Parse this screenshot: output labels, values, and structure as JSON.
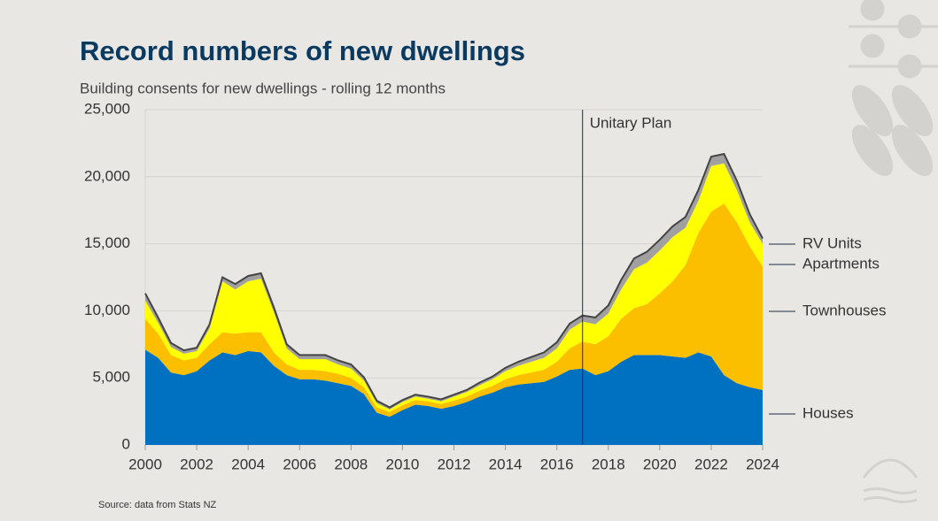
{
  "chart_data": {
    "type": "stacked-area",
    "title": "Record numbers of new dwellings",
    "subtitle": "Building consents for new dwellings - rolling 12 months",
    "source": "Source: data from Stats NZ",
    "annotation": {
      "text": "Unitary Plan",
      "x": 2017
    },
    "x": [
      2000,
      2000.5,
      2001,
      2001.5,
      2002,
      2002.5,
      2003,
      2003.5,
      2004,
      2004.5,
      2005,
      2005.5,
      2006,
      2006.5,
      2007,
      2007.5,
      2008,
      2008.5,
      2009,
      2009.5,
      2010,
      2010.5,
      2011,
      2011.5,
      2012,
      2012.5,
      2013,
      2013.5,
      2014,
      2014.5,
      2015,
      2015.5,
      2016,
      2016.5,
      2017,
      2017.5,
      2018,
      2018.5,
      2019,
      2019.5,
      2020,
      2020.5,
      2021,
      2021.5,
      2022,
      2022.5,
      2023,
      2023.5,
      2024
    ],
    "series": [
      {
        "name": "Houses",
        "color": "#0070c0",
        "values": [
          7100,
          6500,
          5400,
          5200,
          5500,
          6300,
          6900,
          6700,
          7000,
          6900,
          5900,
          5200,
          4900,
          4900,
          4800,
          4600,
          4400,
          3800,
          2400,
          2100,
          2600,
          3000,
          2900,
          2700,
          2900,
          3200,
          3600,
          3900,
          4300,
          4500,
          4600,
          4700,
          5100,
          5600,
          5700,
          5200,
          5500,
          6200,
          6700,
          6700,
          6700,
          6600,
          6500,
          6900,
          6600,
          5200,
          4600,
          4300,
          4100
        ]
      },
      {
        "name": "Townhouses",
        "color": "#fbbf00",
        "values": [
          2300,
          1800,
          1300,
          1100,
          1000,
          1200,
          1500,
          1600,
          1400,
          1500,
          1000,
          800,
          700,
          700,
          700,
          700,
          600,
          500,
          400,
          350,
          350,
          350,
          350,
          350,
          400,
          400,
          450,
          500,
          600,
          700,
          800,
          900,
          1100,
          1600,
          2000,
          2300,
          2600,
          3200,
          3500,
          3800,
          4600,
          5600,
          6900,
          8900,
          10800,
          12800,
          12000,
          10500,
          9200
        ]
      },
      {
        "name": "Apartments",
        "color": "#ffff00",
        "values": [
          1350,
          800,
          600,
          500,
          500,
          1200,
          3800,
          3300,
          3800,
          4000,
          3000,
          1200,
          800,
          800,
          900,
          700,
          700,
          500,
          300,
          200,
          250,
          250,
          200,
          200,
          300,
          350,
          400,
          500,
          600,
          700,
          800,
          900,
          1000,
          1400,
          1500,
          1500,
          1700,
          2200,
          2900,
          3100,
          3200,
          3300,
          2800,
          2400,
          3400,
          3000,
          2400,
          1800,
          1700
        ]
      },
      {
        "name": "RV Units",
        "color": "#a0a0a0",
        "values": [
          550,
          400,
          300,
          250,
          250,
          300,
          300,
          400,
          400,
          400,
          350,
          300,
          300,
          300,
          300,
          300,
          300,
          250,
          200,
          150,
          150,
          150,
          150,
          150,
          150,
          150,
          200,
          200,
          250,
          300,
          350,
          400,
          450,
          450,
          450,
          500,
          600,
          700,
          800,
          800,
          800,
          800,
          800,
          800,
          700,
          700,
          700,
          600,
          400
        ]
      }
    ],
    "xlim": [
      2000,
      2024
    ],
    "xticks": [
      2000,
      2002,
      2004,
      2006,
      2008,
      2010,
      2012,
      2014,
      2016,
      2018,
      2020,
      2022,
      2024
    ],
    "ylim": [
      0,
      25000
    ],
    "yticks": [
      0,
      {
        "value": 5000,
        "label": "5,000"
      },
      {
        "value": 10000,
        "label": "10,000"
      },
      {
        "value": 15000,
        "label": "15,000"
      },
      {
        "value": 20000,
        "label": "20,000"
      },
      {
        "value": 25000,
        "label": "25,000"
      }
    ],
    "grid": true
  }
}
